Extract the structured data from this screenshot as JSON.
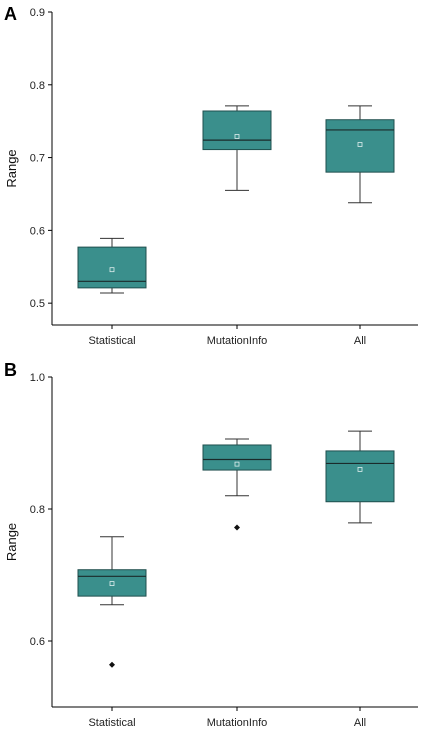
{
  "chart_data": [
    {
      "type": "boxplot",
      "panel_label": "A",
      "ylabel": "Range",
      "xlabel": "",
      "ylim": [
        0.47,
        0.9
      ],
      "yticks": [
        0.5,
        0.6,
        0.7,
        0.8,
        0.9
      ],
      "categories": [
        "Statistical",
        "MutationInfo",
        "All"
      ],
      "box_color": "#3a8f8c",
      "boxes": [
        {
          "category": "Statistical",
          "whisker_low": 0.514,
          "q1": 0.521,
          "median": 0.53,
          "q3": 0.577,
          "whisker_high": 0.589,
          "mean": 0.546,
          "outliers": []
        },
        {
          "category": "MutationInfo",
          "whisker_low": 0.655,
          "q1": 0.711,
          "median": 0.724,
          "q3": 0.764,
          "whisker_high": 0.771,
          "mean": 0.729,
          "outliers": []
        },
        {
          "category": "All",
          "whisker_low": 0.638,
          "q1": 0.68,
          "median": 0.738,
          "q3": 0.752,
          "whisker_high": 0.771,
          "mean": 0.718,
          "outliers": []
        }
      ]
    },
    {
      "type": "boxplot",
      "panel_label": "B",
      "ylabel": "Range",
      "xlabel": "",
      "ylim": [
        0.5,
        1.0
      ],
      "yticks": [
        0.6,
        0.8,
        1.0
      ],
      "ytick_labels": [
        "0.6",
        "0.8",
        "1.0"
      ],
      "categories": [
        "Statistical",
        "MutationInfo",
        "All"
      ],
      "box_color": "#3a8f8c",
      "boxes": [
        {
          "category": "Statistical",
          "whisker_low": 0.655,
          "q1": 0.668,
          "median": 0.698,
          "q3": 0.708,
          "whisker_high": 0.758,
          "mean": 0.687,
          "outliers": [
            0.564
          ]
        },
        {
          "category": "MutationInfo",
          "whisker_low": 0.82,
          "q1": 0.859,
          "median": 0.875,
          "q3": 0.897,
          "whisker_high": 0.906,
          "mean": 0.868,
          "outliers": [
            0.772
          ]
        },
        {
          "category": "All",
          "whisker_low": 0.779,
          "q1": 0.811,
          "median": 0.869,
          "q3": 0.888,
          "whisker_high": 0.918,
          "mean": 0.86,
          "outliers": []
        }
      ]
    }
  ]
}
